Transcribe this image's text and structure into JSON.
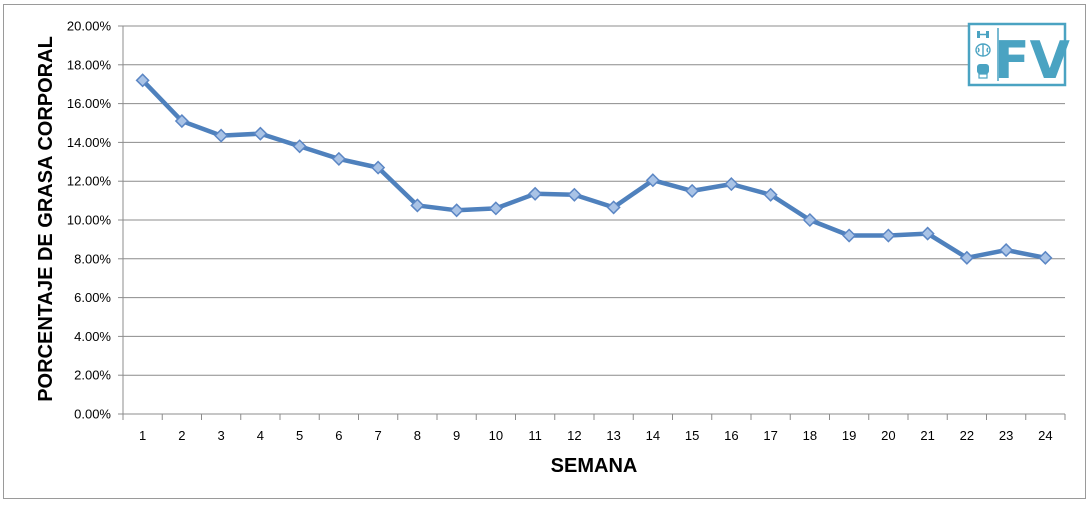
{
  "chart_data": {
    "type": "line",
    "title": "",
    "xlabel": "SEMANA",
    "ylabel": "PORCENTAJE DE GRASA CORPORAL",
    "categories": [
      "1",
      "2",
      "3",
      "4",
      "5",
      "6",
      "7",
      "8",
      "9",
      "10",
      "11",
      "12",
      "13",
      "14",
      "15",
      "16",
      "17",
      "18",
      "19",
      "20",
      "21",
      "22",
      "23",
      "24"
    ],
    "series": [
      {
        "values": [
          17.2,
          15.1,
          14.35,
          14.45,
          13.8,
          13.15,
          12.7,
          10.75,
          10.5,
          10.6,
          11.35,
          11.3,
          10.65,
          12.05,
          11.5,
          11.85,
          11.3,
          10.0,
          9.2,
          9.2,
          9.3,
          8.05,
          8.45,
          8.05
        ],
        "color": "#4f81bd",
        "marker": "diamond"
      }
    ],
    "ylim": [
      0,
      20
    ],
    "yticks": [
      "0.00%",
      "2.00%",
      "4.00%",
      "6.00%",
      "8.00%",
      "10.00%",
      "12.00%",
      "14.00%",
      "16.00%",
      "18.00%",
      "20.00%"
    ],
    "grid": true,
    "legend": "none"
  },
  "logo": {
    "text": "FV",
    "color": "#4aa3c2",
    "icons": [
      "dumbbell-icon",
      "brain-icon",
      "fist-icon"
    ]
  }
}
